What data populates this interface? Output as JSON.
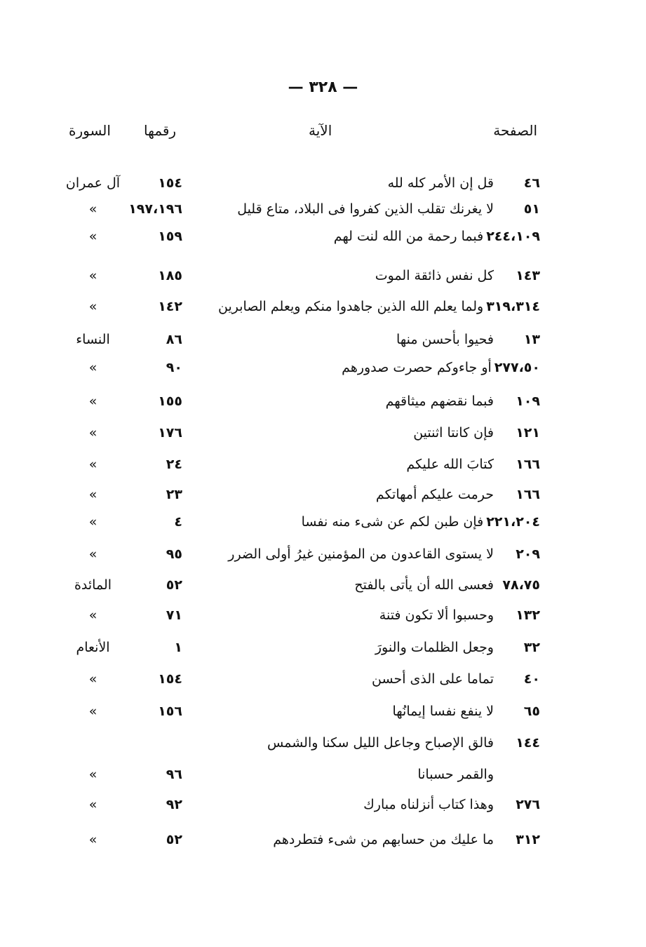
{
  "page_number": "— ٣٢٨ —",
  "headers": {
    "page": "الصفحة",
    "verse": "الآية",
    "number": "رقمها",
    "surah": "السورة"
  },
  "rows": [
    {
      "page": "٤٦",
      "verse": "قل إن الأمر كله لله",
      "number": "١٥٤",
      "surah": "آل عمران"
    },
    {
      "page": "٥١",
      "verse": "لا يغرنك تقلب الذين كفروا فى البلاد، متاع قليل",
      "number": "١٩٧،١٩٦",
      "surah": "»"
    },
    {
      "page": "٢٤٤،١٠٩",
      "verse": "فبما رحمة من الله لنت لهم",
      "number": "١٥٩",
      "surah": "»"
    },
    {
      "page": "١٤٣",
      "verse": "كل نفس ذائقة الموت",
      "number": "١٨٥",
      "surah": "»"
    },
    {
      "page": "٣١٩،٣١٤",
      "verse": "ولما يعلم الله الذين جاهدوا منكم ويعلم الصابرين",
      "number": "١٤٢",
      "surah": "»"
    },
    {
      "page": "١٣",
      "verse": "فحيوا بأحسن منها",
      "number": "٨٦",
      "surah": "النساء"
    },
    {
      "page": "٢٧٧،٥٠",
      "verse": "أو جاءوكم حصرت صدورهم",
      "number": "٩٠",
      "surah": "»"
    },
    {
      "page": "١٠٩",
      "verse": "فبما نقضهم ميثاقهم",
      "number": "١٥٥",
      "surah": "»"
    },
    {
      "page": "١٢١",
      "verse": "فإن كانتا اثنتين",
      "number": "١٧٦",
      "surah": "»"
    },
    {
      "page": "١٦٦",
      "verse": "كتابَ الله عليكم",
      "number": "٢٤",
      "surah": "»"
    },
    {
      "page": "١٦٦",
      "verse": "حرمت عليكم أمهاتكم",
      "number": "٢٣",
      "surah": "»"
    },
    {
      "page": "٢٢١،٢٠٤",
      "verse": "فإن طبن لكم عن شىء منه نفسا",
      "number": "٤",
      "surah": "»"
    },
    {
      "page": "٢٠٩",
      "verse": "لا يستوى القاعدون من المؤمنين غيرُ أولى الضرر",
      "number": "٩٥",
      "surah": "»"
    },
    {
      "page": "٧٨،٧٥",
      "verse": "فعسى الله أن يأتى بالفتح",
      "number": "٥٢",
      "surah": "المائدة"
    },
    {
      "page": "١٣٢",
      "verse": "وحسبوا ألا تكون فتنة",
      "number": "٧١",
      "surah": "»"
    },
    {
      "page": "٣٢",
      "verse": "وجعل الظلمات والنورَ",
      "number": "١",
      "surah": "الأنعام"
    },
    {
      "page": "٤٠",
      "verse": "تماما على الذى أحسن",
      "number": "١٥٤",
      "surah": "»"
    },
    {
      "page": "٦٥",
      "verse": "لا ينفع نفسا إيمانُها",
      "number": "١٥٦",
      "surah": "»"
    },
    {
      "page": "١٤٤",
      "verse": "فالق الإصباح وجاعل الليل سكنا والشمس",
      "number": "",
      "surah": ""
    },
    {
      "page": "",
      "verse": "والقمر حسبانا",
      "number": "٩٦",
      "surah": "»"
    },
    {
      "page": "٢٧٦",
      "verse": "وهذا كتاب أنزلناه مبارك",
      "number": "٩٢",
      "surah": "»"
    },
    {
      "page": "٣١٢",
      "verse": "ما عليك من حسابهم من شىء فتطردهم",
      "number": "٥٢",
      "surah": "»"
    }
  ]
}
